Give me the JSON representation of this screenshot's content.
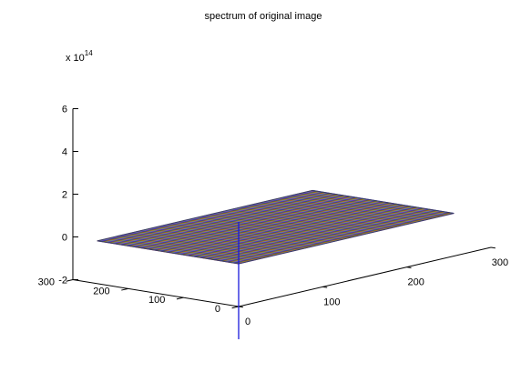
{
  "chart_data": {
    "type": "surface",
    "title": "spectrum of original image",
    "z_multiplier_label": "x 10",
    "z_multiplier_exponent": "14",
    "x": {
      "ticks": [
        0,
        100,
        200,
        300
      ],
      "range": [
        0,
        300
      ]
    },
    "y": {
      "ticks": [
        0,
        100,
        200,
        300
      ],
      "range": [
        0,
        300
      ]
    },
    "z": {
      "ticks": [
        -2,
        0,
        2,
        4,
        6
      ],
      "range": [
        -2,
        6
      ]
    },
    "surface": {
      "x_extent": [
        0,
        256
      ],
      "y_extent": [
        0,
        256
      ],
      "z_level": 0,
      "mesh_lines": 256
    },
    "peak": {
      "x": 0,
      "y": 0,
      "z_from": -2,
      "z_to": 2,
      "color": "#1a1adb"
    },
    "mesh_colors": [
      "#d02020",
      "#20a020",
      "#2020d0",
      "#c020c0",
      "#20b0b0",
      "#b0a020"
    ],
    "grid": false
  }
}
